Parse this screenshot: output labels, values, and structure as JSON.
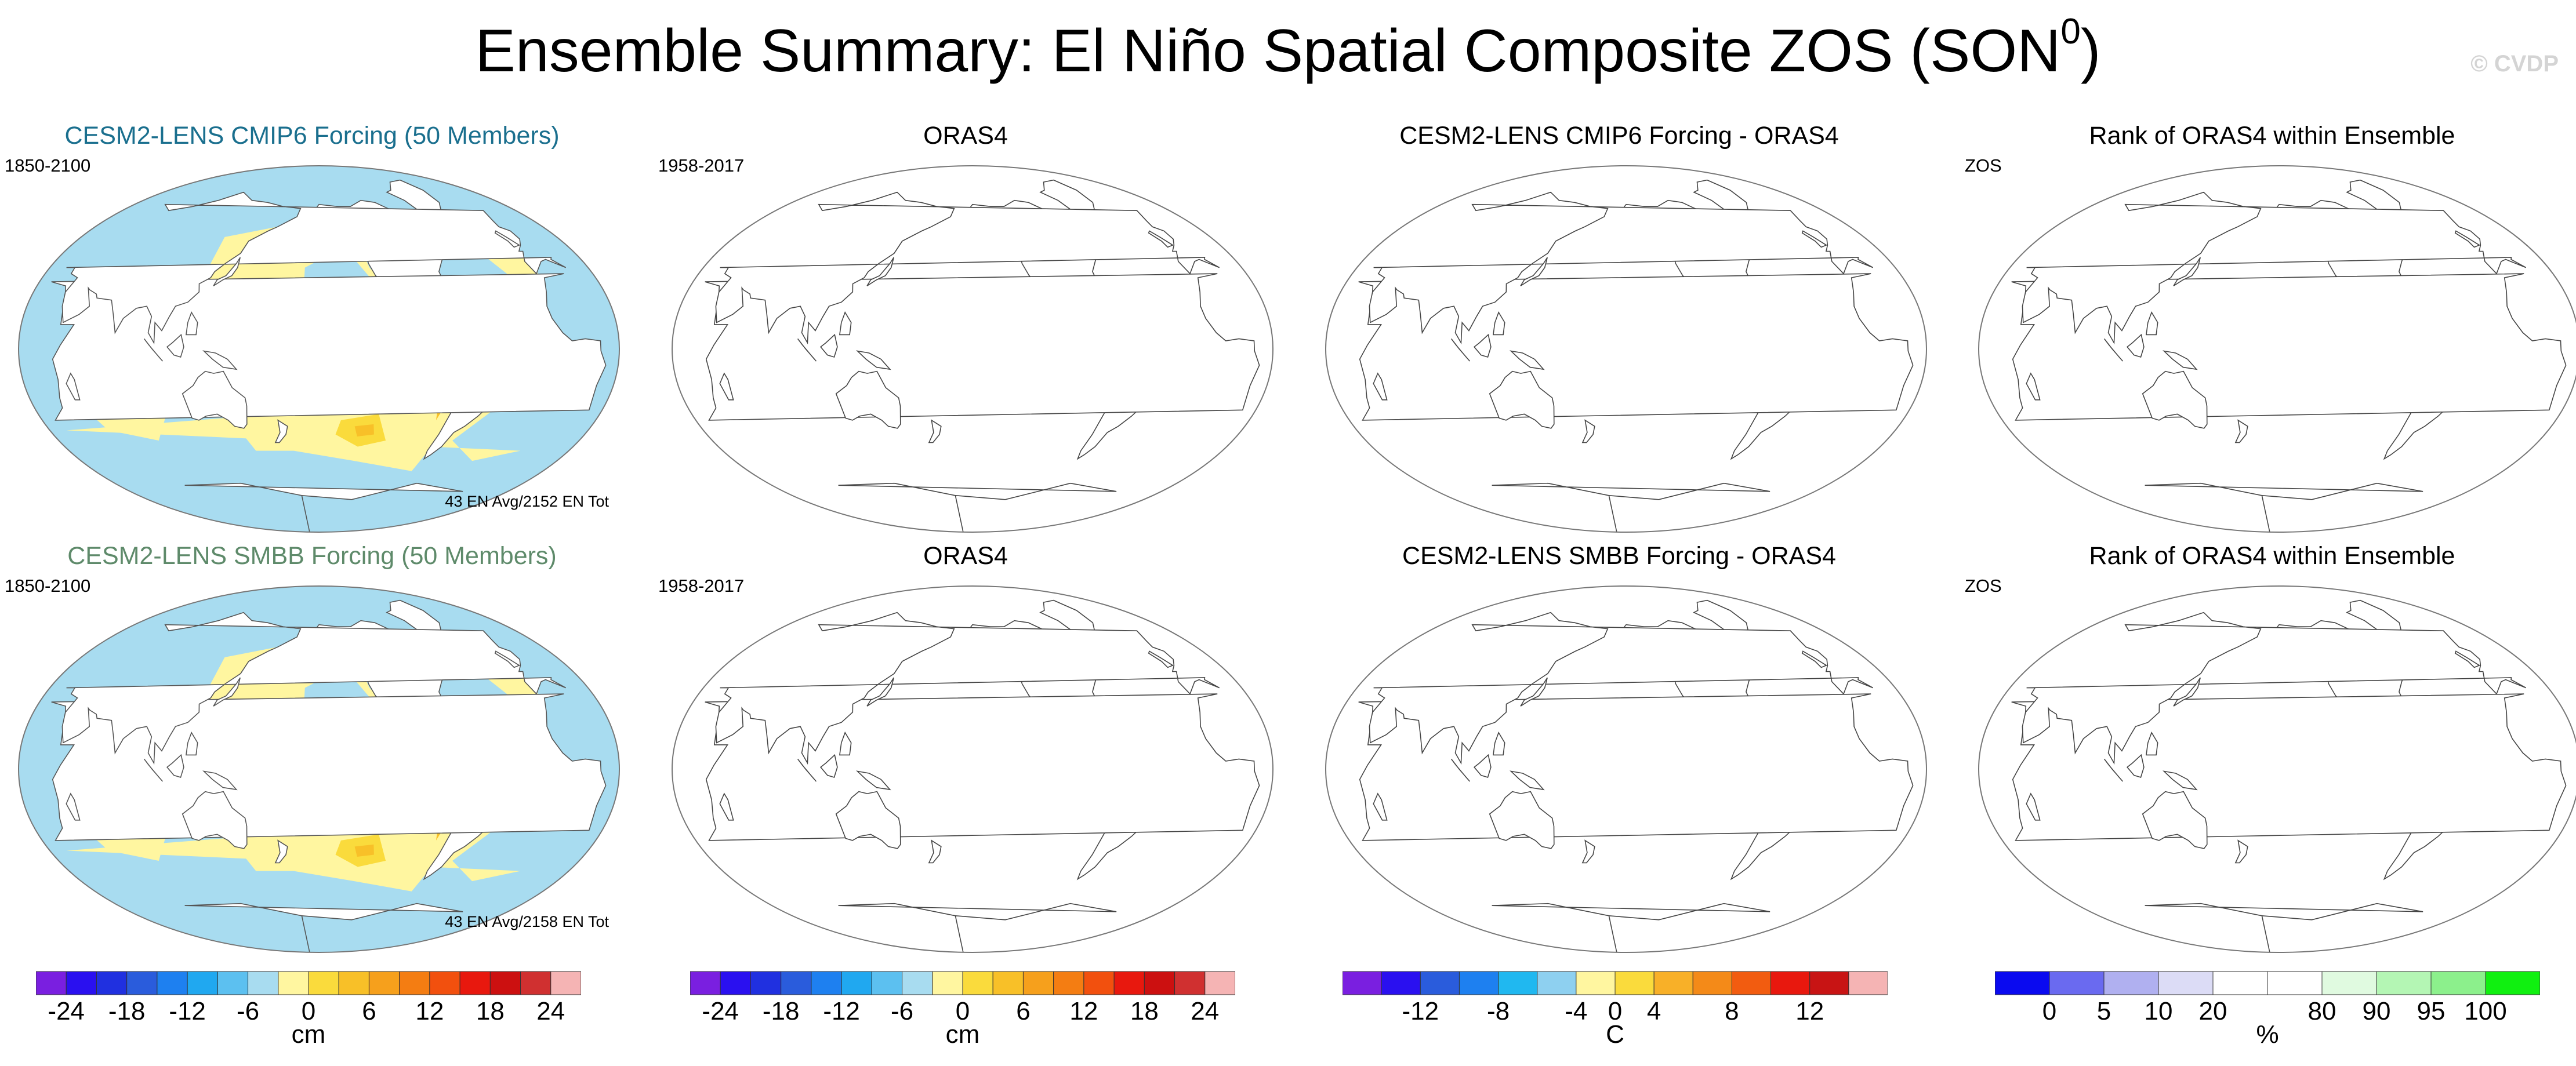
{
  "title": {
    "text": "Ensemble Summary: El Niño Spatial Composite ZOS (SON",
    "superscript": "0",
    "close": ")"
  },
  "watermark": "© CVDP",
  "panels": [
    {
      "title": "CESM2-LENS CMIP6 Forcing (50 Members)",
      "title_color": "#1a6f8e",
      "left_label": "1850-2100",
      "right_label": "43 EN Avg/2152 EN Tot",
      "filled": true
    },
    {
      "title": "ORAS4",
      "title_color": "#000000",
      "left_label": "1958-2017",
      "right_label": "",
      "filled": false
    },
    {
      "title": "CESM2-LENS CMIP6 Forcing - ORAS4",
      "title_color": "#000000",
      "left_label": "",
      "right_label": "",
      "filled": false
    },
    {
      "title": "Rank of ORAS4 within Ensemble",
      "title_color": "#000000",
      "left_label": "ZOS",
      "right_label": "",
      "filled": false
    },
    {
      "title": "CESM2-LENS SMBB Forcing (50 Members)",
      "title_color": "#5e8a6a",
      "left_label": "1850-2100",
      "right_label": "43 EN Avg/2158 EN Tot",
      "filled": true
    },
    {
      "title": "ORAS4",
      "title_color": "#000000",
      "left_label": "1958-2017",
      "right_label": "",
      "filled": false
    },
    {
      "title": "CESM2-LENS SMBB Forcing - ORAS4",
      "title_color": "#000000",
      "left_label": "",
      "right_label": "",
      "filled": false
    },
    {
      "title": "Rank of ORAS4 within Ensemble",
      "title_color": "#000000",
      "left_label": "ZOS",
      "right_label": "",
      "filled": false
    }
  ],
  "colorbars": [
    {
      "colors": [
        "#7a1fe0",
        "#2a10f0",
        "#2030e0",
        "#2a5cdc",
        "#1e80f0",
        "#20a8f0",
        "#5cc0f0",
        "#a8dcf0",
        "#fff6a0",
        "#fadb3c",
        "#f8c028",
        "#f6a01c",
        "#f47d12",
        "#f2500e",
        "#e8180e",
        "#cc1010",
        "#d03030",
        "#f5b4b4"
      ],
      "ticks": [
        "-24",
        "-18",
        "-12",
        "-6",
        "0",
        "6",
        "12",
        "18",
        "24"
      ],
      "unit": "cm"
    },
    {
      "colors": [
        "#7a1fe0",
        "#2a10f0",
        "#2030e0",
        "#2a5cdc",
        "#1e80f0",
        "#20a8f0",
        "#5cc0f0",
        "#a8dcf0",
        "#fff6a0",
        "#fadb3c",
        "#f8c028",
        "#f6a01c",
        "#f47d12",
        "#f2500e",
        "#e8180e",
        "#cc1010",
        "#d03030",
        "#f5b4b4"
      ],
      "ticks": [
        "-24",
        "-18",
        "-12",
        "-6",
        "0",
        "6",
        "12",
        "18",
        "24"
      ],
      "unit": "cm"
    },
    {
      "colors": [
        "#7a1fe0",
        "#2a10f0",
        "#2a5cdc",
        "#1e80f0",
        "#20b8f0",
        "#8ed0f0",
        "#fff6a0",
        "#fadb3c",
        "#f8b028",
        "#f48a18",
        "#f25c10",
        "#e8180e",
        "#c81414",
        "#f5b4b4"
      ],
      "ticks": [
        "-12",
        "-8",
        "-4",
        "0",
        "4",
        "8",
        "12"
      ],
      "unit": "C"
    },
    {
      "colors": [
        "#0a0af0",
        "#6a6af0",
        "#b0b0f0",
        "#dcdcf6",
        "#ffffff",
        "#ffffff",
        "#e0fae0",
        "#b4f6b4",
        "#8cf08c",
        "#10f010"
      ],
      "ticks": [
        "0",
        "5",
        "10",
        "20",
        "80",
        "90",
        "95",
        "100"
      ],
      "unit": "%"
    }
  ]
}
